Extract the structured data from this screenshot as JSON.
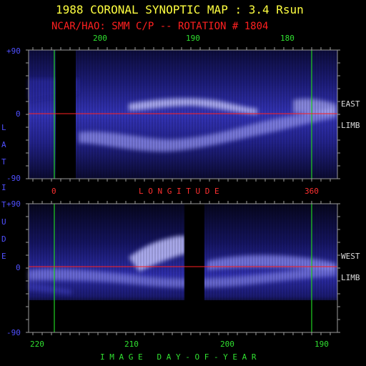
{
  "header": {
    "title": "1988 CORONAL SYNOPTIC MAP : 3.4 Rsun",
    "subtitle": "NCAR/HAO: SMM C/P -- ROTATION # 1804"
  },
  "top_panel": {
    "top_axis_ticks": [
      "200",
      "190",
      "180"
    ],
    "lat_ticks": [
      "+90",
      "0",
      "-90"
    ],
    "right_label_1": "EAST",
    "right_label_2": "LIMB",
    "bottom_axis_ticks": [
      "0",
      "360"
    ],
    "bottom_axis_label": "L O N G I T U D E"
  },
  "bottom_panel": {
    "lat_ticks": [
      "+90",
      "0",
      "-90"
    ],
    "right_label_1": "WEST",
    "right_label_2": "LIMB",
    "bottom_axis_ticks": [
      "220",
      "210",
      "200",
      "190"
    ],
    "bottom_axis_label": "I M A G E   D A Y - O F - Y E A R"
  },
  "side_label_letters": [
    "L",
    "A",
    "T",
    "I",
    "T",
    "U",
    "D",
    "E"
  ],
  "colors": {
    "title": "#ffff40",
    "subtitle": "#ff2020",
    "axis_green": "#30e030",
    "axis_blue": "#5050ff",
    "equator_line": "#ff2020",
    "frame": "#a0a0a0"
  }
}
